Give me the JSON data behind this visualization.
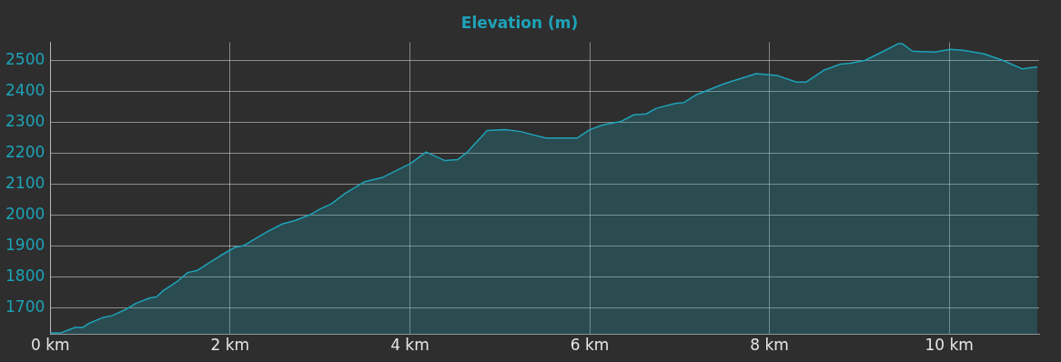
{
  "chart_data": {
    "type": "area",
    "title": "Elevation (m)",
    "x": [
      0,
      0.12,
      0.21,
      0.27,
      0.36,
      0.42,
      0.59,
      0.69,
      0.85,
      0.95,
      1.11,
      1.18,
      1.26,
      1.42,
      1.53,
      1.63,
      1.76,
      1.89,
      2.05,
      2.15,
      2.26,
      2.42,
      2.58,
      2.73,
      2.89,
      3.0,
      3.13,
      3.28,
      3.49,
      3.7,
      4.01,
      4.18,
      4.39,
      4.53,
      4.64,
      4.86,
      5.06,
      5.23,
      5.51,
      5.86,
      6.0,
      6.14,
      6.35,
      6.49,
      6.63,
      6.74,
      6.95,
      7.05,
      7.18,
      7.49,
      7.85,
      8.09,
      8.3,
      8.41,
      8.61,
      8.79,
      8.9,
      9.06,
      9.27,
      9.43,
      9.48,
      9.59,
      9.84,
      10.01,
      10.15,
      10.39,
      10.6,
      10.81,
      10.98
    ],
    "series": [
      {
        "color": "#1ea3b8",
        "values": [
          1620,
          1620,
          1630,
          1637,
          1637,
          1649,
          1670,
          1676,
          1697,
          1715,
          1733,
          1736,
          1757,
          1788,
          1815,
          1821,
          1845,
          1869,
          1896,
          1902,
          1921,
          1948,
          1972,
          1984,
          2002,
          2020,
          2038,
          2071,
          2108,
          2123,
          2168,
          2205,
          2177,
          2180,
          2205,
          2274,
          2277,
          2271,
          2250,
          2250,
          2277,
          2292,
          2304,
          2325,
          2328,
          2346,
          2362,
          2365,
          2389,
          2425,
          2458,
          2452,
          2431,
          2431,
          2470,
          2489,
          2492,
          2501,
          2531,
          2555,
          2555,
          2531,
          2528,
          2537,
          2534,
          2522,
          2501,
          2474,
          2480
        ]
      }
    ],
    "xlim": [
      0,
      11
    ],
    "ylim": [
      1615,
      2560
    ],
    "xticks": [
      {
        "value": 0,
        "label": "0 km"
      },
      {
        "value": 2,
        "label": "2 km"
      },
      {
        "value": 4,
        "label": "4 km"
      },
      {
        "value": 6,
        "label": "6 km"
      },
      {
        "value": 8,
        "label": "8 km"
      },
      {
        "value": 10,
        "label": "10 km"
      }
    ],
    "yticks": [
      1700,
      1800,
      1900,
      2000,
      2100,
      2200,
      2300,
      2400,
      2500
    ],
    "grid": true,
    "legend": false,
    "marker": "none",
    "line_style": "solid"
  }
}
